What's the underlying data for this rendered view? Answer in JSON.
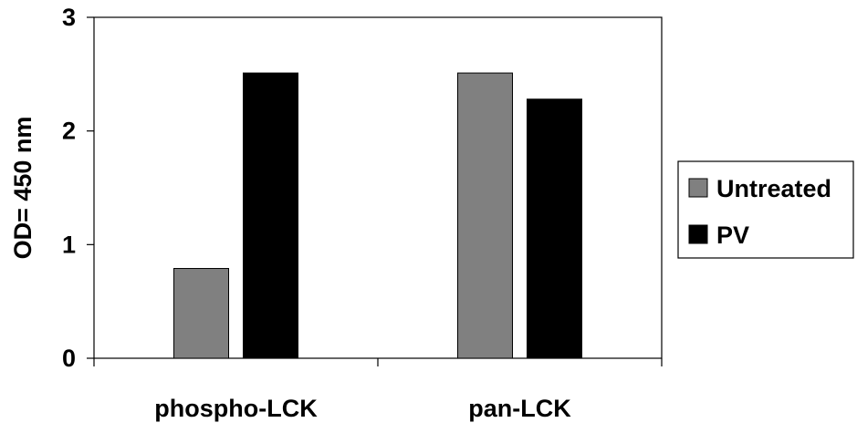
{
  "chart_data": {
    "type": "bar",
    "title": "",
    "xlabel": "",
    "ylabel": "OD= 450 nm",
    "ylim": [
      0,
      3
    ],
    "yticks": [
      0,
      1,
      2,
      3
    ],
    "yticks_labels": [
      "0",
      "1",
      "2",
      "3"
    ],
    "grid": false,
    "legend_position": "right",
    "categories": [
      "phospho-LCK",
      "pan-LCK"
    ],
    "series": [
      {
        "name": "Untreated",
        "color": "#808080",
        "values": [
          0.79,
          2.51
        ]
      },
      {
        "name": "PV",
        "color": "#000000",
        "values": [
          2.51,
          2.28
        ]
      }
    ]
  }
}
